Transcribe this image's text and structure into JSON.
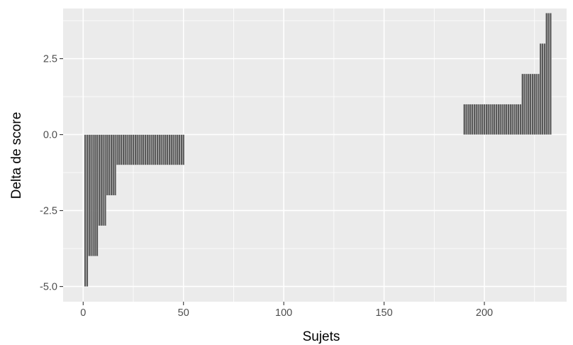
{
  "chart_data": {
    "type": "bar",
    "title": "",
    "xlabel": "Sujets",
    "ylabel": "Delta de score",
    "xlim": [
      -10,
      241
    ],
    "ylim": [
      -5.5,
      4.15
    ],
    "x_ticks": [
      0,
      50,
      100,
      150,
      200
    ],
    "x_tick_labels": [
      "0",
      "50",
      "100",
      "150",
      "200"
    ],
    "y_ticks": [
      -5.0,
      -2.5,
      0.0,
      2.5
    ],
    "y_tick_labels": [
      "-5.0",
      "-2.5",
      "0.0",
      "2.5"
    ],
    "grid": true,
    "legend": "none",
    "colors": {
      "panel": "#ebebeb",
      "grid": "#ffffff",
      "bar": "#595959",
      "bar_edge": "#ffffff"
    },
    "runs": [
      {
        "from": 1,
        "to": 2,
        "value": -5
      },
      {
        "from": 3,
        "to": 7,
        "value": -4
      },
      {
        "from": 8,
        "to": 11,
        "value": -3
      },
      {
        "from": 12,
        "to": 16,
        "value": -2
      },
      {
        "from": 17,
        "to": 50,
        "value": -1
      },
      {
        "from": 190,
        "to": 218,
        "value": 1
      },
      {
        "from": 219,
        "to": 227,
        "value": 2
      },
      {
        "from": 228,
        "to": 230,
        "value": 3
      },
      {
        "from": 231,
        "to": 233,
        "value": 4
      }
    ]
  }
}
